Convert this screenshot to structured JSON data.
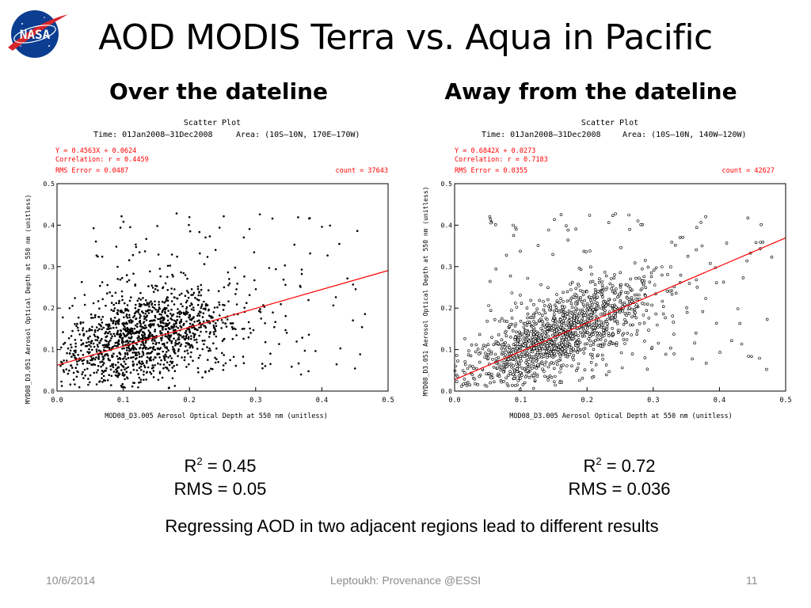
{
  "slide": {
    "title": "AOD MODIS Terra vs. Aqua in Pacific",
    "logo_text": "NASA",
    "summary": "Regressing AOD in two adjacent regions lead to different results",
    "footer": {
      "date": "10/6/2014",
      "center": "Leptoukh: Provenance  @ESSI",
      "page": "11"
    }
  },
  "panels": [
    {
      "subtitle": "Over the dateline",
      "stats": {
        "r2_label": "R",
        "r2_sup": "2",
        "r2_value": " = 0.45",
        "rms": "RMS = 0.05"
      }
    },
    {
      "subtitle": "Away from the dateline",
      "stats": {
        "r2_label": "R",
        "r2_sup": "2",
        "r2_value": " = 0.72",
        "rms": "RMS = 0.036"
      }
    }
  ],
  "chart_data": [
    {
      "type": "scatter",
      "title": "Scatter Plot",
      "time_label": "Time: 01Jan2008—31Dec2008",
      "area_label": "Area: (10S—10N, 170E—170W)",
      "equation": "Y = 0.4563X + 0.0624",
      "correlation": "Correlation: r = 0.4459",
      "rms_error": "RMS Error =  0.0487",
      "count": "count = 37643",
      "xlabel": "MOD08_D3.005 Aerosol Optical Depth at 550 nm (unitless)",
      "ylabel": "MYD08_D3.051 Aerosol Optical Depth at 550 nm (unitless)",
      "xlim": [
        0,
        0.5
      ],
      "ylim": [
        0,
        0.5
      ],
      "xticks": [
        "0.0",
        "0.1",
        "0.2",
        "0.3",
        "0.4",
        "0.5"
      ],
      "yticks": [
        "0.0",
        "0.1",
        "0.2",
        "0.3",
        "0.4",
        "0.5"
      ],
      "regression": {
        "slope": 0.4563,
        "intercept": 0.0624,
        "color": "#ff0000"
      },
      "point_color": "#000000",
      "cloud": {
        "x_center": 0.13,
        "y_center": 0.13,
        "x_spread": 0.07,
        "y_spread": 0.055,
        "x_min": 0.005,
        "n": 1500
      }
    },
    {
      "type": "scatter",
      "title": "Scatter Plot",
      "time_label": "Time: 01Jan2008—31Dec2008",
      "area_label": "Area: (10S—10N, 140W—120W)",
      "equation": "Y = 0.6842X + 0.0273",
      "correlation": "Correlation: r = 0.7183",
      "rms_error": "RMS Error =  0.0355",
      "count": "count = 42627",
      "xlabel": "MOD08_D3.005 Aerosol Optical Depth at 550 nm (unitless)",
      "ylabel": "MYD08_D3.051 Aerosol Optical Depth at 550 nm (unitless)",
      "xlim": [
        0,
        0.5
      ],
      "ylim": [
        0,
        0.5
      ],
      "xticks": [
        "0.0",
        "0.1",
        "0.2",
        "0.3",
        "0.4",
        "0.5"
      ],
      "yticks": [
        "0.0",
        "0.1",
        "0.2",
        "0.3",
        "0.4",
        "0.5"
      ],
      "regression": {
        "slope": 0.6842,
        "intercept": 0.0273,
        "color": "#ff0000"
      },
      "point_color": "#000000",
      "cloud": {
        "x_center": 0.15,
        "y_center": 0.13,
        "x_spread": 0.07,
        "y_spread": 0.045,
        "x_min": 0.0,
        "n": 1500
      }
    }
  ]
}
